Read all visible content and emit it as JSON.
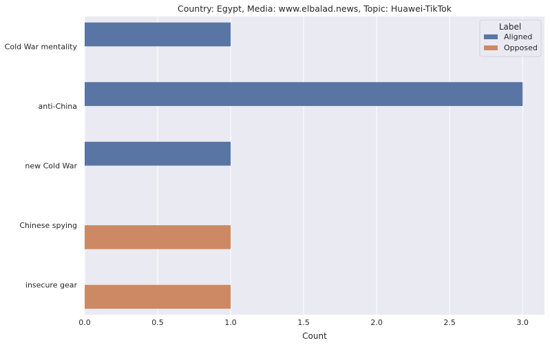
{
  "chart_data": {
    "type": "bar",
    "orientation": "horizontal",
    "title": "Country: Egypt, Media: www.elbalad.news, Topic: Huawei-TikTok",
    "xlabel": "Count",
    "ylabel": "",
    "xlim": [
      0,
      3.15
    ],
    "x_ticks": [
      "0.0",
      "0.5",
      "1.0",
      "1.5",
      "2.0",
      "2.5",
      "3.0"
    ],
    "grid": true,
    "categories": [
      "Cold War mentality",
      "anti-China",
      "new Cold War",
      "Chinese spying",
      "insecure gear"
    ],
    "legend": {
      "title": "Label",
      "placement": "top-right",
      "entries": [
        "Aligned",
        "Opposed"
      ]
    },
    "series": [
      {
        "name": "Aligned",
        "color": "#5875a4",
        "values": [
          1,
          3,
          1,
          null,
          null
        ]
      },
      {
        "name": "Opposed",
        "color": "#cc8963",
        "values": [
          null,
          null,
          null,
          1,
          1
        ]
      }
    ]
  }
}
